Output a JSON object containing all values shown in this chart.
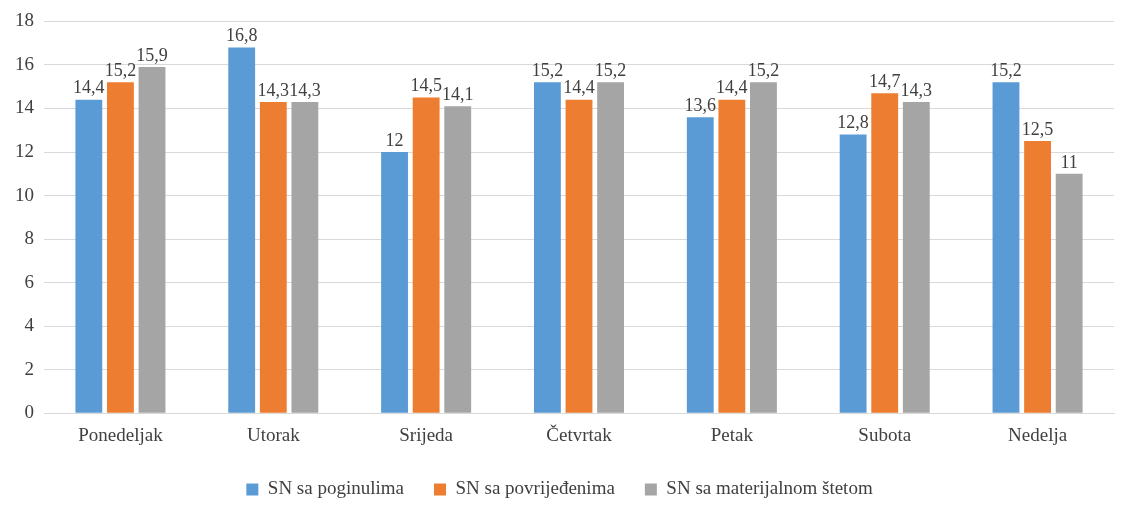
{
  "chart_data": {
    "type": "bar",
    "categories": [
      "Ponedeljak",
      "Utorak",
      "Srijeda",
      "Četvrtak",
      "Petak",
      "Subota",
      "Nedelja"
    ],
    "series": [
      {
        "name": "SN sa poginulima",
        "color": "#5b9bd5",
        "values": [
          14.4,
          16.8,
          12,
          15.2,
          13.6,
          12.8,
          15.2
        ],
        "value_labels": [
          "14,4",
          "16,8",
          "12",
          "15,2",
          "13,6",
          "12,8",
          "15,2"
        ]
      },
      {
        "name": "SN sa povrijeđenima",
        "color": "#ed7d31",
        "values": [
          15.2,
          14.3,
          14.5,
          14.4,
          14.4,
          14.7,
          12.5
        ],
        "value_labels": [
          "15,2",
          "14,3",
          "14,5",
          "14,4",
          "14,4",
          "14,7",
          "12,5"
        ]
      },
      {
        "name": "SN sa materijalnom štetom",
        "color": "#a5a5a5",
        "values": [
          15.9,
          14.3,
          14.1,
          15.2,
          15.2,
          14.3,
          11
        ],
        "value_labels": [
          "15,9",
          "14,3",
          "14,1",
          "15,2",
          "15,2",
          "14,3",
          "11"
        ]
      }
    ],
    "ylim": [
      0,
      18
    ],
    "yticks": [
      0,
      2,
      4,
      6,
      8,
      10,
      12,
      14,
      16,
      18
    ],
    "grid": "y",
    "legend": "bottom"
  }
}
